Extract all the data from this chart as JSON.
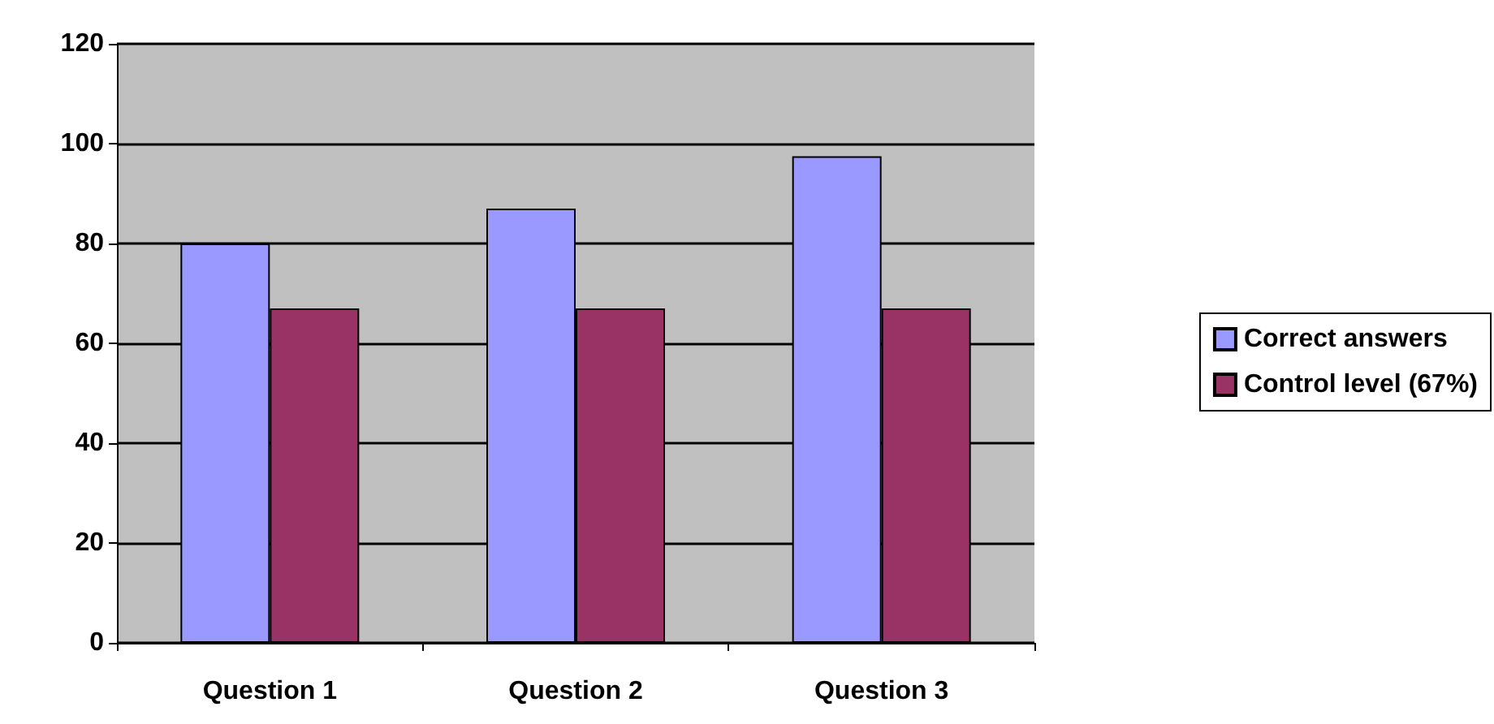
{
  "chart_data": {
    "type": "bar",
    "categories": [
      "Question 1",
      "Question 2",
      "Question 3"
    ],
    "series": [
      {
        "name": "Correct answers",
        "color": "#9999ff",
        "values": [
          80,
          87,
          97.5
        ]
      },
      {
        "name": "Control level (67%)",
        "color": "#993366",
        "values": [
          67,
          67,
          67
        ]
      }
    ],
    "ylim": [
      0,
      120
    ],
    "yticks": [
      0,
      20,
      40,
      60,
      80,
      100,
      120
    ],
    "grid": "y",
    "legend": "right"
  }
}
